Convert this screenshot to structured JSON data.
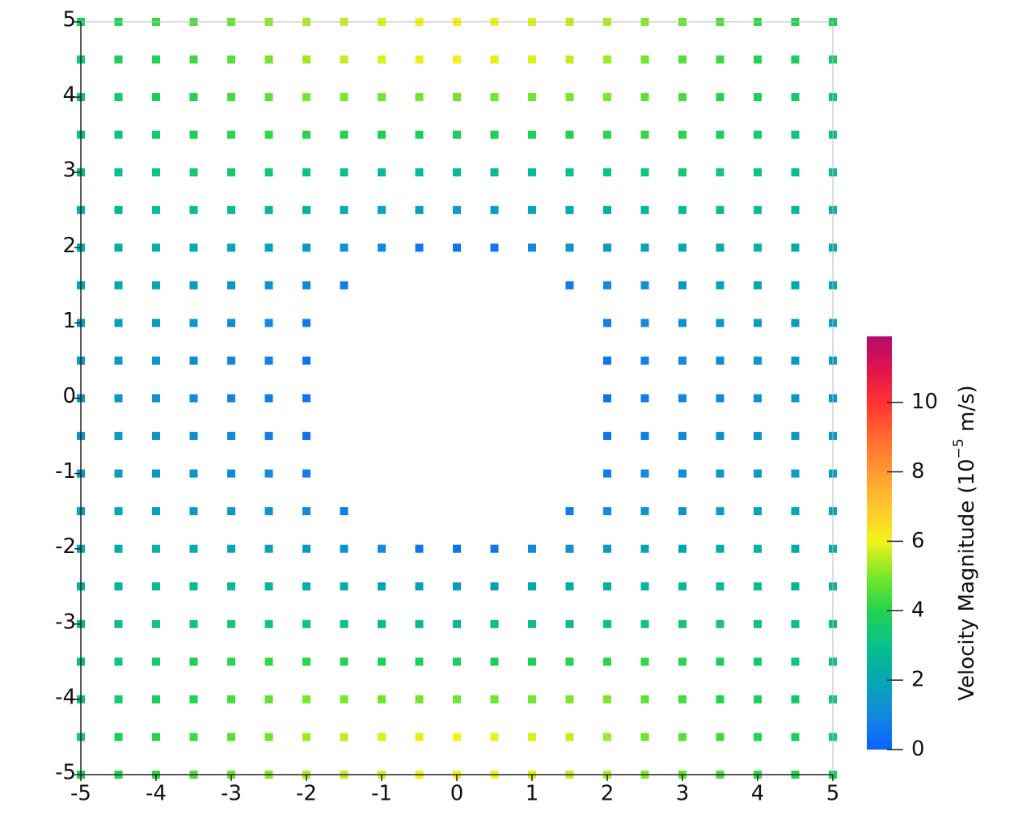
{
  "chart_data": {
    "type": "scatter",
    "xlim": [
      -5,
      5
    ],
    "ylim": [
      -5,
      5
    ],
    "xticks": [
      -5,
      -4,
      -3,
      -2,
      -1,
      0,
      1,
      2,
      3,
      4,
      5
    ],
    "yticks": [
      -5,
      -4,
      -3,
      -2,
      -1,
      0,
      1,
      2,
      3,
      4,
      5
    ],
    "x": [
      -5,
      -4.5,
      -4,
      -3.5,
      -3,
      -2.5,
      -2,
      -1.5,
      -1,
      -0.5,
      0,
      0.5,
      1,
      1.5,
      2,
      2.5,
      3,
      3.5,
      4,
      4.5,
      5
    ],
    "y": [
      5,
      4.5,
      4,
      3.5,
      3,
      2.5,
      2,
      1.5,
      1,
      0.5,
      0,
      -0.5,
      -1,
      -1.5,
      -2,
      -2.5,
      -3,
      -3.5,
      -4,
      -4.5,
      -5
    ],
    "values": [
      [
        3.8,
        4.0,
        4.2,
        4.5,
        4.8,
        5.1,
        5.4,
        5.6,
        5.8,
        6.0,
        6.0,
        6.0,
        5.8,
        5.6,
        5.4,
        5.1,
        4.8,
        4.5,
        4.2,
        4.0,
        3.8
      ],
      [
        3.5,
        3.8,
        4.0,
        4.3,
        4.6,
        4.9,
        5.3,
        5.6,
        5.8,
        5.9,
        6.0,
        5.9,
        5.8,
        5.6,
        5.3,
        4.9,
        4.6,
        4.3,
        4.0,
        3.8,
        3.5
      ],
      [
        3.3,
        3.5,
        3.8,
        4.0,
        4.4,
        4.7,
        5.0,
        5.0,
        4.9,
        4.9,
        4.9,
        4.9,
        4.9,
        5.0,
        5.0,
        4.7,
        4.4,
        4.0,
        3.8,
        3.5,
        3.3
      ],
      [
        3.0,
        3.2,
        3.5,
        3.8,
        4.1,
        4.2,
        4.1,
        4.0,
        3.9,
        3.8,
        3.8,
        3.8,
        3.9,
        4.0,
        4.1,
        4.2,
        4.1,
        3.8,
        3.5,
        3.2,
        3.0
      ],
      [
        2.7,
        2.9,
        3.1,
        3.4,
        3.4,
        3.3,
        3.1,
        3.0,
        2.8,
        2.8,
        2.7,
        2.8,
        2.8,
        3.0,
        3.1,
        3.3,
        3.4,
        3.4,
        3.1,
        2.9,
        2.7
      ],
      [
        2.4,
        2.6,
        2.8,
        2.8,
        2.7,
        2.5,
        2.3,
        2.1,
        1.9,
        1.7,
        1.6,
        1.7,
        1.9,
        2.1,
        2.3,
        2.5,
        2.7,
        2.8,
        2.8,
        2.6,
        2.4
      ],
      [
        2.1,
        2.2,
        2.4,
        2.2,
        2.0,
        1.8,
        1.6,
        1.3,
        1.0,
        0.6,
        0.5,
        0.6,
        1.0,
        1.3,
        1.6,
        1.8,
        2.0,
        2.2,
        2.4,
        2.2,
        2.1
      ],
      [
        1.9,
        2.0,
        1.9,
        1.7,
        1.5,
        1.3,
        1.0,
        0.7,
        null,
        null,
        null,
        null,
        null,
        0.7,
        1.0,
        1.3,
        1.5,
        1.7,
        1.9,
        2.0,
        1.9
      ],
      [
        1.7,
        1.7,
        1.6,
        1.4,
        1.2,
        1.0,
        0.7,
        null,
        null,
        null,
        null,
        null,
        null,
        null,
        0.7,
        1.0,
        1.2,
        1.4,
        1.6,
        1.7,
        1.7
      ],
      [
        1.5,
        1.6,
        1.4,
        1.2,
        1.0,
        0.8,
        0.5,
        null,
        null,
        null,
        null,
        null,
        null,
        null,
        0.5,
        0.8,
        1.0,
        1.2,
        1.4,
        1.6,
        1.5
      ],
      [
        1.5,
        1.5,
        1.3,
        1.1,
        0.9,
        0.7,
        0.5,
        null,
        null,
        null,
        null,
        null,
        null,
        null,
        0.5,
        0.7,
        0.9,
        1.1,
        1.3,
        1.5,
        1.5
      ],
      [
        1.5,
        1.6,
        1.4,
        1.2,
        1.0,
        0.8,
        0.5,
        null,
        null,
        null,
        null,
        null,
        null,
        null,
        0.5,
        0.8,
        1.0,
        1.2,
        1.4,
        1.6,
        1.5
      ],
      [
        1.7,
        1.7,
        1.6,
        1.4,
        1.2,
        1.0,
        0.7,
        null,
        null,
        null,
        null,
        null,
        null,
        null,
        0.7,
        1.0,
        1.2,
        1.4,
        1.6,
        1.7,
        1.7
      ],
      [
        1.9,
        2.0,
        1.9,
        1.7,
        1.5,
        1.3,
        1.0,
        0.7,
        null,
        null,
        null,
        null,
        null,
        0.7,
        1.0,
        1.3,
        1.5,
        1.7,
        1.9,
        2.0,
        1.9
      ],
      [
        2.1,
        2.2,
        2.4,
        2.2,
        2.0,
        1.8,
        1.6,
        1.3,
        1.0,
        0.6,
        0.5,
        0.6,
        1.0,
        1.3,
        1.6,
        1.8,
        2.0,
        2.2,
        2.4,
        2.2,
        2.1
      ],
      [
        2.4,
        2.6,
        2.8,
        2.8,
        2.7,
        2.5,
        2.3,
        2.1,
        1.9,
        1.7,
        1.6,
        1.7,
        1.9,
        2.1,
        2.3,
        2.5,
        2.7,
        2.8,
        2.8,
        2.6,
        2.4
      ],
      [
        2.7,
        2.9,
        3.1,
        3.4,
        3.4,
        3.3,
        3.1,
        3.0,
        2.8,
        2.8,
        2.7,
        2.8,
        2.8,
        3.0,
        3.1,
        3.3,
        3.4,
        3.4,
        3.1,
        2.9,
        2.7
      ],
      [
        3.0,
        3.2,
        3.5,
        3.8,
        4.1,
        4.2,
        4.1,
        4.0,
        3.9,
        3.8,
        3.8,
        3.8,
        3.9,
        4.0,
        4.1,
        4.2,
        4.1,
        3.8,
        3.5,
        3.2,
        3.0
      ],
      [
        3.3,
        3.5,
        3.8,
        4.0,
        4.4,
        4.7,
        5.0,
        5.0,
        4.9,
        4.9,
        4.9,
        4.9,
        4.9,
        5.0,
        5.0,
        4.7,
        4.4,
        4.0,
        3.8,
        3.5,
        3.3
      ],
      [
        3.5,
        3.8,
        4.0,
        4.3,
        4.6,
        4.9,
        5.3,
        5.6,
        5.8,
        5.9,
        6.0,
        5.9,
        5.8,
        5.6,
        5.3,
        4.9,
        4.6,
        4.3,
        4.0,
        3.8,
        3.5
      ],
      [
        3.8,
        4.0,
        4.2,
        4.5,
        4.8,
        5.1,
        5.4,
        5.6,
        5.8,
        6.0,
        6.0,
        6.0,
        5.8,
        5.6,
        5.4,
        5.1,
        4.8,
        4.5,
        4.2,
        4.0,
        3.8
      ]
    ],
    "colorbar": {
      "label": [
        "Velocity Magnitude (10",
        "−5",
        " m/s)"
      ],
      "range": [
        0,
        11.9
      ],
      "ticks": [
        0,
        2,
        4,
        6,
        8,
        10
      ],
      "colormap": [
        [
          0,
          "#0a62ff"
        ],
        [
          1,
          "#1388de"
        ],
        [
          2,
          "#05a8b0"
        ],
        [
          3,
          "#09c08a"
        ],
        [
          4,
          "#22d250"
        ],
        [
          5,
          "#7ae82a"
        ],
        [
          6,
          "#f2f21a"
        ],
        [
          7,
          "#ffc62e"
        ],
        [
          8,
          "#ff9a32"
        ],
        [
          9,
          "#ff6a30"
        ],
        [
          10,
          "#ff3230"
        ],
        [
          11,
          "#e0124e"
        ],
        [
          11.9,
          "#b00c6c"
        ]
      ]
    }
  }
}
